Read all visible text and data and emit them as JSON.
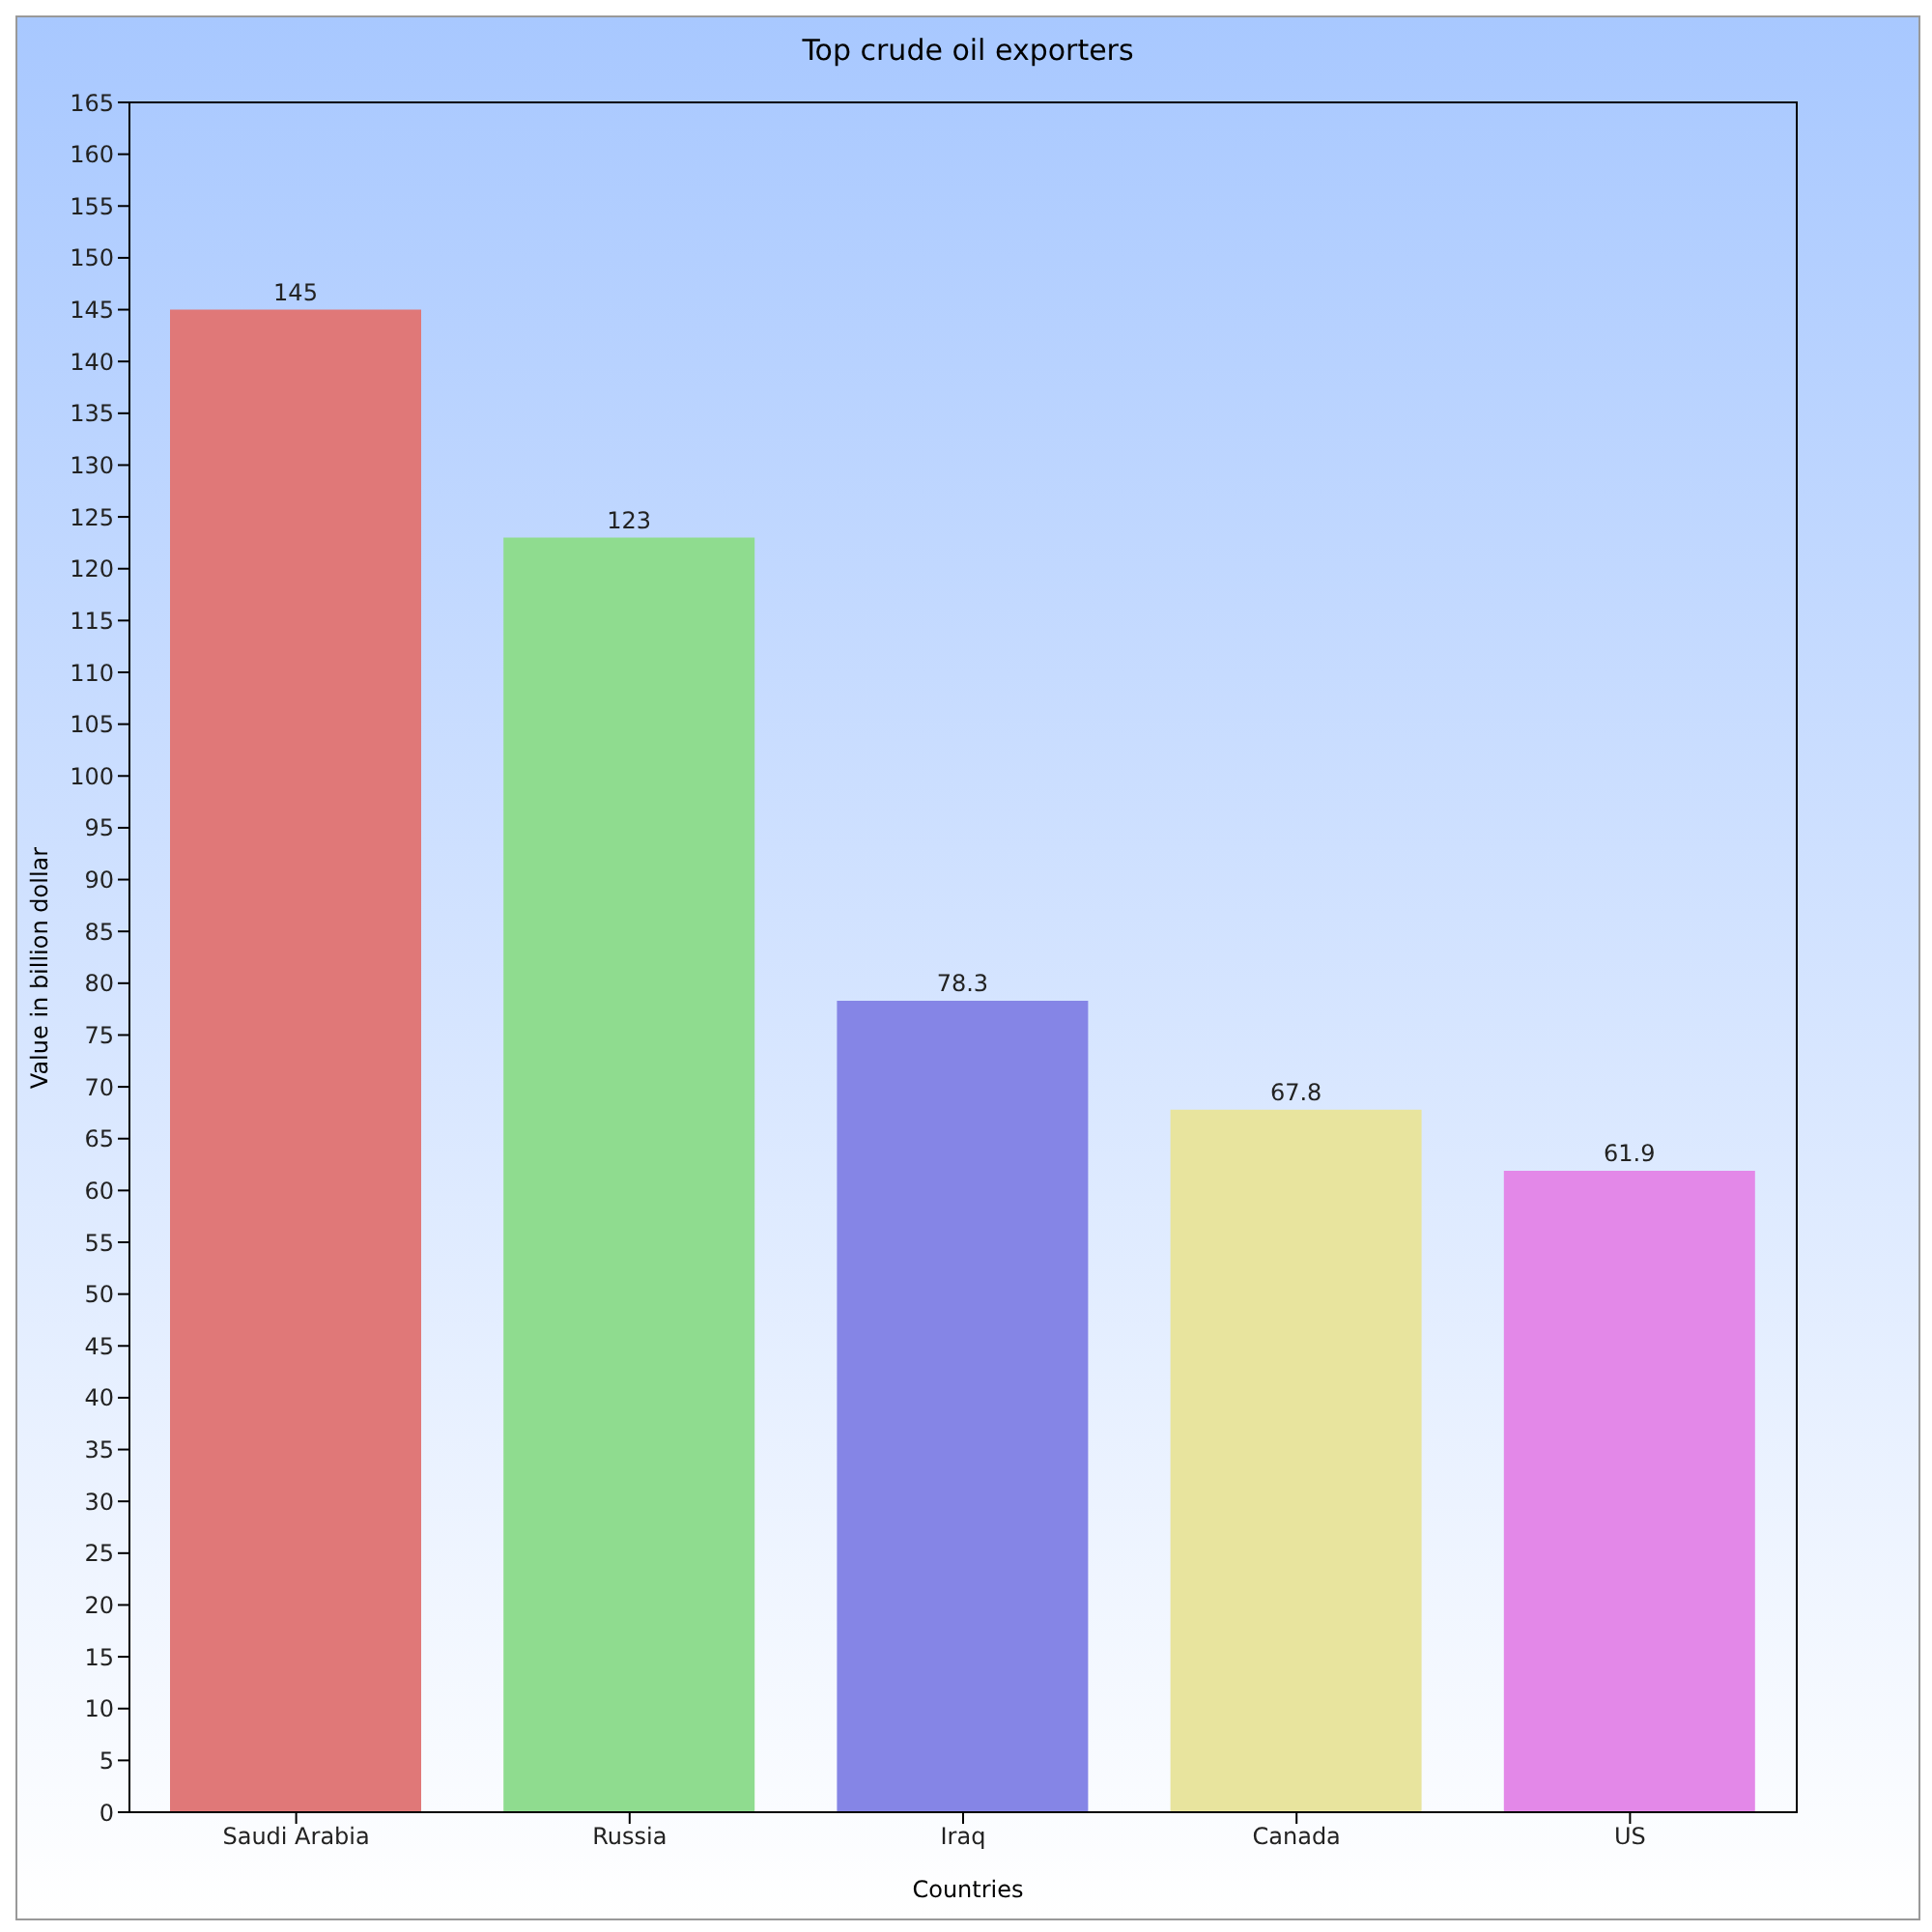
{
  "chart_data": {
    "type": "bar",
    "title": "Top crude oil exporters",
    "xlabel": "Countries",
    "ylabel": "Value in billion dollar",
    "categories": [
      "Saudi Arabia",
      "Russia",
      "Iraq",
      "Canada",
      "US"
    ],
    "values": [
      145,
      123,
      78.3,
      67.8,
      61.9
    ],
    "colors": [
      "#e07878",
      "#8fdc8f",
      "#8585e6",
      "#e8e49e",
      "#e388e8"
    ],
    "ylim": [
      0,
      165
    ],
    "yticks": [
      0,
      5,
      10,
      15,
      20,
      25,
      30,
      35,
      40,
      45,
      50,
      55,
      60,
      65,
      70,
      75,
      80,
      85,
      90,
      95,
      100,
      105,
      110,
      115,
      120,
      125,
      130,
      135,
      140,
      145,
      150,
      155,
      160,
      165
    ],
    "grid": false,
    "data_labels": true
  }
}
